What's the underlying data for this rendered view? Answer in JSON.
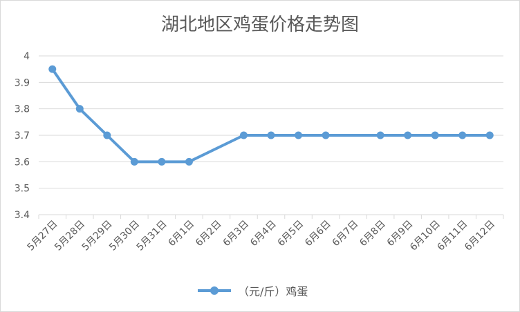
{
  "chart_data": {
    "type": "line",
    "title": "湖北地区鸡蛋价格走势图",
    "categories": [
      "5月27日",
      "5月28日",
      "5月29日",
      "5月30日",
      "5月31日",
      "6月1日",
      "6月2日",
      "6月3日",
      "6月4日",
      "6月5日",
      "6月6日",
      "6月7日",
      "6月8日",
      "6月9日",
      "6月10日",
      "6月11日",
      "6月12日"
    ],
    "series": [
      {
        "name": "（元/斤）鸡蛋",
        "values": [
          3.95,
          3.8,
          3.7,
          3.6,
          3.6,
          3.6,
          null,
          3.7,
          3.7,
          3.7,
          3.7,
          null,
          3.7,
          3.7,
          3.7,
          3.7,
          3.7
        ]
      }
    ],
    "ylim": [
      3.4,
      4
    ],
    "yticks": [
      "3.4",
      "3.5",
      "3.6",
      "3.7",
      "3.8",
      "3.9",
      "4"
    ],
    "grid": true,
    "legend_position": "bottom",
    "colors": {
      "series": "#5b9bd5",
      "grid": "#d9d9d9",
      "text": "#595959"
    }
  }
}
